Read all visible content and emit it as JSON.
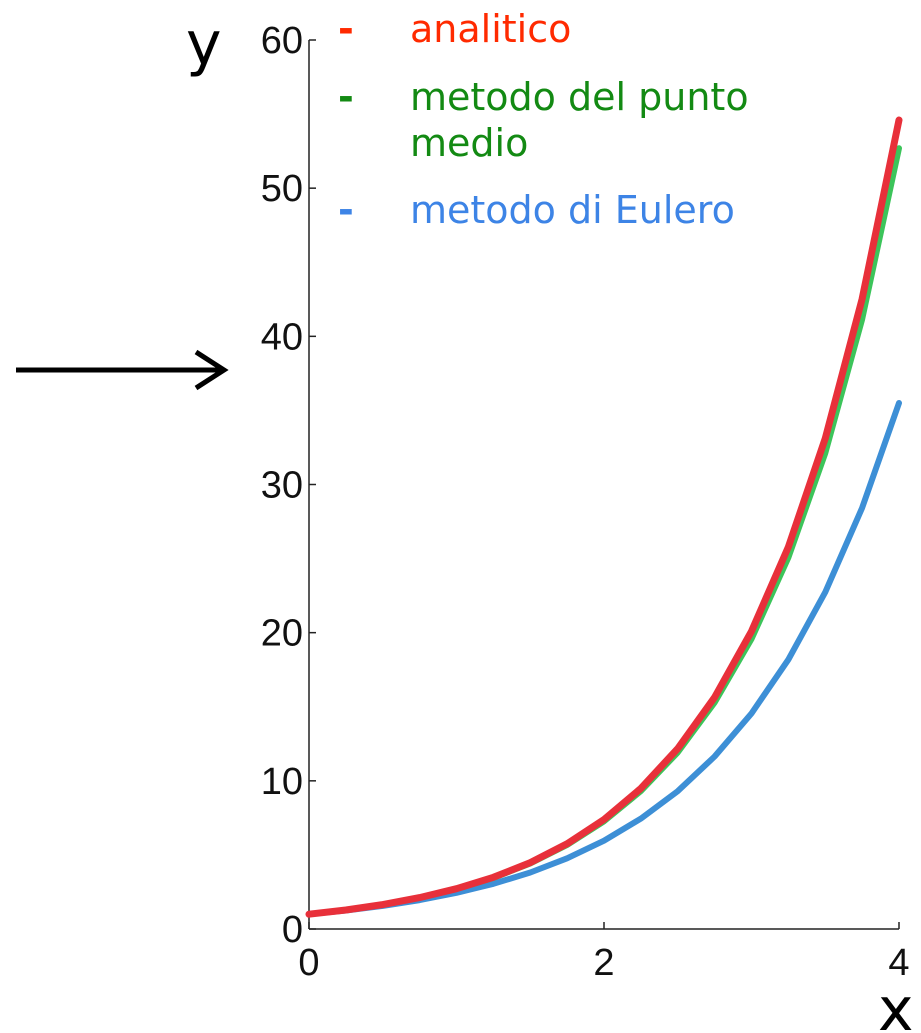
{
  "chart_data": {
    "type": "line",
    "xlabel": "x",
    "ylabel": "y",
    "xlim": [
      0,
      4
    ],
    "ylim": [
      0,
      60
    ],
    "xticks": [
      0,
      2,
      4
    ],
    "yticks": [
      0,
      10,
      20,
      30,
      40,
      50,
      60
    ],
    "grid": false,
    "legend_position": "top",
    "series": [
      {
        "name": "analitico",
        "color": "#e8303a",
        "x": [
          0,
          0.25,
          0.5,
          0.75,
          1,
          1.25,
          1.5,
          1.75,
          2,
          2.25,
          2.5,
          2.75,
          3,
          3.25,
          3.5,
          3.75,
          4
        ],
        "y": [
          1.0,
          1.28,
          1.65,
          2.12,
          2.72,
          3.49,
          4.48,
          5.75,
          7.39,
          9.49,
          12.18,
          15.64,
          20.09,
          25.79,
          33.12,
          42.52,
          54.6
        ]
      },
      {
        "name": "metodo del punto medio",
        "color": "#3cc45a",
        "x": [
          0,
          0.25,
          0.5,
          0.75,
          1,
          1.25,
          1.5,
          1.75,
          2,
          2.25,
          2.5,
          2.75,
          3,
          3.25,
          3.5,
          3.75,
          4
        ],
        "y": [
          1.0,
          1.28,
          1.64,
          2.1,
          2.7,
          3.45,
          4.43,
          5.67,
          7.27,
          9.31,
          11.92,
          15.28,
          19.57,
          25.07,
          32.12,
          41.14,
          52.7
        ]
      },
      {
        "name": "metodo di Eulero",
        "color": "#3d8fd6",
        "x": [
          0,
          0.25,
          0.5,
          0.75,
          1,
          1.25,
          1.5,
          1.75,
          2,
          2.25,
          2.5,
          2.75,
          3,
          3.25,
          3.5,
          3.75,
          4
        ],
        "y": [
          1.0,
          1.25,
          1.56,
          1.95,
          2.44,
          3.05,
          3.81,
          4.77,
          5.96,
          7.45,
          9.31,
          11.64,
          14.55,
          18.19,
          22.74,
          28.42,
          35.5
        ]
      }
    ],
    "legend": [
      {
        "marker": "-",
        "label": "analitico",
        "color": "#ff2a00"
      },
      {
        "marker": "-",
        "label": "metodo del punto",
        "label_cont": "medio",
        "color": "#138a13"
      },
      {
        "marker": "-",
        "label": "metodo di Eulero",
        "color": "#3d84e6"
      }
    ],
    "annotation": {
      "type": "arrow",
      "pointing_at_y": 37.7
    }
  }
}
